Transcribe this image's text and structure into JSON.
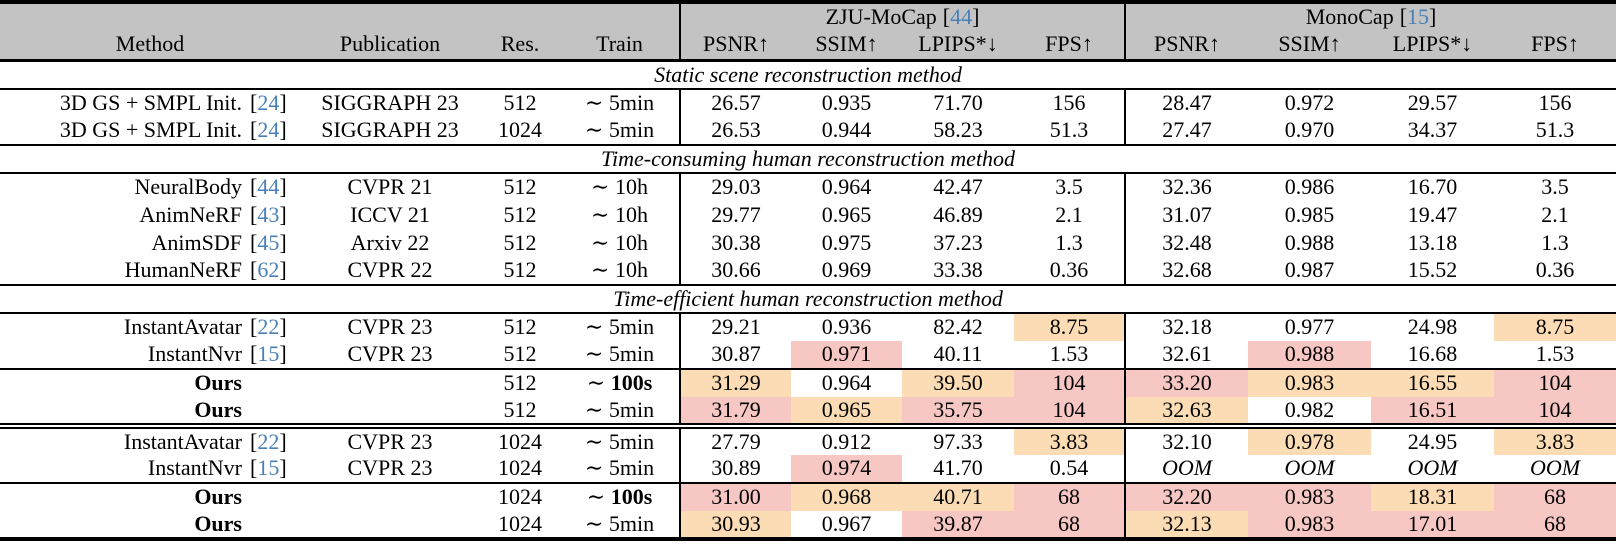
{
  "colors": {
    "best_highlight": "#f6c7c3",
    "second_highlight": "#fbdcb4",
    "header_background": "#c3c3c3",
    "citation": "#4a80b8"
  },
  "format": {
    "cite_open": "[",
    "cite_close": "]"
  },
  "header": {
    "columns": [
      "Method",
      "Publication",
      "Res.",
      "Train"
    ],
    "groups": [
      {
        "name": "ZJU-MoCap",
        "cite": "44",
        "metrics": [
          "PSNR↑",
          "SSIM↑",
          "LPIPS*↓",
          "FPS↑"
        ]
      },
      {
        "name": "MonoCap",
        "cite": "15",
        "metrics": [
          "PSNR↑",
          "SSIM↑",
          "LPIPS*↓",
          "FPS↑"
        ]
      }
    ]
  },
  "sections": [
    {
      "title": "Static scene reconstruction method",
      "rows": [
        {
          "method": "3D GS + SMPL Init.",
          "cite": "24",
          "publication": "SIGGRAPH 23",
          "res": "512",
          "train": {
            "prefix": "∼ ",
            "value": "5min",
            "bold": false
          },
          "values": [
            {
              "t": "26.57"
            },
            {
              "t": "0.935"
            },
            {
              "t": "71.70"
            },
            {
              "t": "156"
            },
            {
              "t": "28.47"
            },
            {
              "t": "0.972"
            },
            {
              "t": "29.57"
            },
            {
              "t": "156"
            }
          ]
        },
        {
          "method": "3D GS + SMPL Init.",
          "cite": "24",
          "publication": "SIGGRAPH 23",
          "res": "1024",
          "train": {
            "prefix": "∼ ",
            "value": "5min",
            "bold": false
          },
          "values": [
            {
              "t": "26.53"
            },
            {
              "t": "0.944"
            },
            {
              "t": "58.23"
            },
            {
              "t": "51.3"
            },
            {
              "t": "27.47"
            },
            {
              "t": "0.970"
            },
            {
              "t": "34.37"
            },
            {
              "t": "51.3"
            }
          ]
        }
      ]
    },
    {
      "title": "Time-consuming human reconstruction method",
      "rows": [
        {
          "method": "NeuralBody",
          "cite": "44",
          "publication": "CVPR 21",
          "res": "512",
          "train": {
            "prefix": "∼ ",
            "value": "10h",
            "bold": false
          },
          "values": [
            {
              "t": "29.03"
            },
            {
              "t": "0.964"
            },
            {
              "t": "42.47"
            },
            {
              "t": "3.5"
            },
            {
              "t": "32.36"
            },
            {
              "t": "0.986"
            },
            {
              "t": "16.70"
            },
            {
              "t": "3.5"
            }
          ]
        },
        {
          "method": "AnimNeRF",
          "cite": "43",
          "publication": "ICCV 21",
          "res": "512",
          "train": {
            "prefix": "∼ ",
            "value": "10h",
            "bold": false
          },
          "values": [
            {
              "t": "29.77"
            },
            {
              "t": "0.965"
            },
            {
              "t": "46.89"
            },
            {
              "t": "2.1"
            },
            {
              "t": "31.07"
            },
            {
              "t": "0.985"
            },
            {
              "t": "19.47"
            },
            {
              "t": "2.1"
            }
          ]
        },
        {
          "method": "AnimSDF",
          "cite": "45",
          "publication": "Arxiv 22",
          "res": "512",
          "train": {
            "prefix": "∼ ",
            "value": "10h",
            "bold": false
          },
          "values": [
            {
              "t": "30.38"
            },
            {
              "t": "0.975"
            },
            {
              "t": "37.23"
            },
            {
              "t": "1.3"
            },
            {
              "t": "32.48"
            },
            {
              "t": "0.988"
            },
            {
              "t": "13.18"
            },
            {
              "t": "1.3"
            }
          ]
        },
        {
          "method": "HumanNeRF",
          "cite": "62",
          "publication": "CVPR 22",
          "res": "512",
          "train": {
            "prefix": "∼ ",
            "value": "10h",
            "bold": false
          },
          "values": [
            {
              "t": "30.66"
            },
            {
              "t": "0.969"
            },
            {
              "t": "33.38"
            },
            {
              "t": "0.36"
            },
            {
              "t": "32.68"
            },
            {
              "t": "0.987"
            },
            {
              "t": "15.52"
            },
            {
              "t": "0.36"
            }
          ]
        }
      ]
    },
    {
      "title": "Time-efficient human reconstruction method",
      "rows": [
        {
          "method": "InstantAvatar",
          "cite": "22",
          "publication": "CVPR 23",
          "res": "512",
          "train": {
            "prefix": "∼ ",
            "value": "5min",
            "bold": false
          },
          "values": [
            {
              "t": "29.21"
            },
            {
              "t": "0.936"
            },
            {
              "t": "82.42"
            },
            {
              "t": "8.75",
              "h": "second"
            },
            {
              "t": "32.18"
            },
            {
              "t": "0.977"
            },
            {
              "t": "24.98"
            },
            {
              "t": "8.75",
              "h": "second"
            }
          ]
        },
        {
          "method": "InstantNvr",
          "cite": "15",
          "publication": "CVPR 23",
          "res": "512",
          "train": {
            "prefix": "∼ ",
            "value": "5min",
            "bold": false
          },
          "values": [
            {
              "t": "30.87"
            },
            {
              "t": "0.971",
              "h": "best"
            },
            {
              "t": "40.11"
            },
            {
              "t": "1.53"
            },
            {
              "t": "32.61"
            },
            {
              "t": "0.988",
              "h": "best"
            },
            {
              "t": "16.68"
            },
            {
              "t": "1.53"
            }
          ]
        },
        {
          "method": "Ours",
          "cite": "",
          "publication": "",
          "res": "512",
          "bold": true,
          "rule_above": "single",
          "train": {
            "prefix": "∼ ",
            "value": "100s",
            "bold": true
          },
          "values": [
            {
              "t": "31.29",
              "h": "second"
            },
            {
              "t": "0.964"
            },
            {
              "t": "39.50",
              "h": "second"
            },
            {
              "t": "104",
              "h": "best"
            },
            {
              "t": "33.20",
              "h": "best"
            },
            {
              "t": "0.983",
              "h": "second"
            },
            {
              "t": "16.55",
              "h": "second"
            },
            {
              "t": "104",
              "h": "best"
            }
          ]
        },
        {
          "method": "Ours",
          "cite": "",
          "publication": "",
          "res": "512",
          "bold": true,
          "train": {
            "prefix": "∼ ",
            "value": "5min",
            "bold": false
          },
          "values": [
            {
              "t": "31.79",
              "h": "best"
            },
            {
              "t": "0.965",
              "h": "second"
            },
            {
              "t": "35.75",
              "h": "best"
            },
            {
              "t": "104",
              "h": "best"
            },
            {
              "t": "32.63",
              "h": "second"
            },
            {
              "t": "0.982"
            },
            {
              "t": "16.51",
              "h": "best"
            },
            {
              "t": "104",
              "h": "best"
            }
          ]
        },
        {
          "method": "InstantAvatar",
          "cite": "22",
          "publication": "CVPR 23",
          "res": "1024",
          "rule_above": "double",
          "train": {
            "prefix": "∼ ",
            "value": "5min",
            "bold": false
          },
          "values": [
            {
              "t": "27.79"
            },
            {
              "t": "0.912"
            },
            {
              "t": "97.33"
            },
            {
              "t": "3.83",
              "h": "second"
            },
            {
              "t": "32.10"
            },
            {
              "t": "0.978",
              "h": "second"
            },
            {
              "t": "24.95"
            },
            {
              "t": "3.83",
              "h": "second"
            }
          ]
        },
        {
          "method": "InstantNvr",
          "cite": "15",
          "publication": "CVPR 23",
          "res": "1024",
          "train": {
            "prefix": "∼ ",
            "value": "5min",
            "bold": false
          },
          "values": [
            {
              "t": "30.89"
            },
            {
              "t": "0.974",
              "h": "best"
            },
            {
              "t": "41.70"
            },
            {
              "t": "0.54"
            },
            {
              "t": "OOM",
              "i": true
            },
            {
              "t": "OOM",
              "i": true
            },
            {
              "t": "OOM",
              "i": true
            },
            {
              "t": "OOM",
              "i": true
            }
          ]
        },
        {
          "method": "Ours",
          "cite": "",
          "publication": "",
          "res": "1024",
          "bold": true,
          "rule_above": "single",
          "train": {
            "prefix": "∼ ",
            "value": "100s",
            "bold": true
          },
          "values": [
            {
              "t": "31.00",
              "h": "best"
            },
            {
              "t": "0.968",
              "h": "second"
            },
            {
              "t": "40.71",
              "h": "second"
            },
            {
              "t": "68",
              "h": "best"
            },
            {
              "t": "32.20",
              "h": "best"
            },
            {
              "t": "0.983",
              "h": "best"
            },
            {
              "t": "18.31",
              "h": "second"
            },
            {
              "t": "68",
              "h": "best"
            }
          ]
        },
        {
          "method": "Ours",
          "cite": "",
          "publication": "",
          "res": "1024",
          "bold": true,
          "train": {
            "prefix": "∼ ",
            "value": "5min",
            "bold": false
          },
          "values": [
            {
              "t": "30.93",
              "h": "second"
            },
            {
              "t": "0.967"
            },
            {
              "t": "39.87",
              "h": "best"
            },
            {
              "t": "68",
              "h": "best"
            },
            {
              "t": "32.13",
              "h": "second"
            },
            {
              "t": "0.983",
              "h": "best"
            },
            {
              "t": "17.01",
              "h": "best"
            },
            {
              "t": "68",
              "h": "best"
            }
          ]
        }
      ]
    }
  ]
}
